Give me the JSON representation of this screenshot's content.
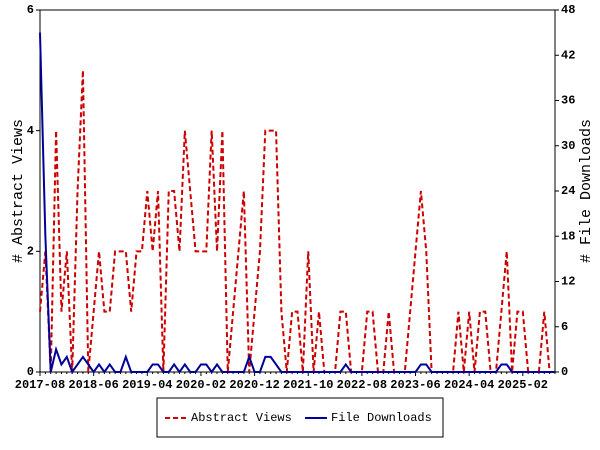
{
  "chart_data": {
    "type": "line",
    "y_label": "# Abstract Views",
    "y2_label": "# File Downloads",
    "categories": [
      "2017-08",
      null,
      null,
      null,
      null,
      null,
      null,
      null,
      null,
      null,
      "2018-06",
      null,
      null,
      null,
      null,
      null,
      null,
      null,
      null,
      null,
      "2019-04",
      null,
      null,
      null,
      null,
      null,
      null,
      null,
      null,
      null,
      "2020-02",
      null,
      null,
      null,
      null,
      null,
      null,
      null,
      null,
      null,
      "2020-12",
      null,
      null,
      null,
      null,
      null,
      null,
      null,
      null,
      null,
      "2021-10",
      null,
      null,
      null,
      null,
      null,
      null,
      null,
      null,
      null,
      "2022-08",
      null,
      null,
      null,
      null,
      null,
      null,
      null,
      null,
      null,
      "2023-06",
      null,
      null,
      null,
      null,
      null,
      null,
      null,
      null,
      null,
      "2024-04",
      null,
      null,
      null,
      null,
      null,
      null,
      null,
      null,
      null,
      "2025-02",
      null,
      null,
      null,
      null,
      null,
      null
    ],
    "series": [
      {
        "name": "Abstract Views",
        "color": "#cc0000",
        "dashed": true,
        "axis": "y",
        "values": [
          1,
          2,
          0,
          4,
          1,
          2,
          0,
          3,
          5,
          0,
          1,
          2,
          1,
          1,
          2,
          2,
          2,
          1,
          2,
          2,
          3,
          2,
          3,
          0,
          3,
          3,
          2,
          4,
          3,
          2,
          2,
          2,
          4,
          2,
          4,
          0,
          1,
          2,
          3,
          0,
          1,
          2,
          4,
          4,
          4,
          1,
          0,
          1,
          1,
          0,
          2,
          0,
          1,
          0,
          0,
          0,
          1,
          1,
          0,
          0,
          0,
          1,
          1,
          0,
          0,
          1,
          0,
          0,
          0,
          1,
          2,
          3,
          2,
          0,
          0,
          0,
          0,
          0,
          1,
          0,
          1,
          0,
          1,
          1,
          0,
          0,
          1,
          2,
          0,
          1,
          1,
          0,
          0,
          0,
          1,
          0,
          0
        ]
      },
      {
        "name": "File Downloads",
        "color": "#000099",
        "dashed": false,
        "axis": "y2",
        "values": [
          45,
          18,
          0,
          3,
          1,
          2,
          0,
          1,
          2,
          1,
          0,
          1,
          0,
          1,
          0,
          0,
          2,
          0,
          0,
          0,
          0,
          1,
          1,
          0,
          0,
          1,
          0,
          1,
          0,
          0,
          1,
          1,
          0,
          1,
          0,
          0,
          0,
          0,
          0,
          2,
          0,
          0,
          2,
          2,
          1,
          0,
          0,
          0,
          0,
          0,
          0,
          0,
          0,
          0,
          0,
          0,
          0,
          1,
          0,
          0,
          0,
          0,
          0,
          0,
          0,
          0,
          0,
          0,
          0,
          0,
          0,
          1,
          1,
          0,
          0,
          0,
          0,
          0,
          0,
          0,
          0,
          0,
          0,
          0,
          0,
          0,
          1,
          1,
          0,
          0,
          0,
          0,
          0,
          0,
          0,
          0,
          0
        ]
      }
    ],
    "ylim": [
      0,
      6
    ],
    "yticks": [
      0,
      2,
      4,
      6
    ],
    "y2lim": [
      0,
      48
    ],
    "y2ticks": [
      0,
      6,
      12,
      18,
      24,
      30,
      36,
      42,
      48
    ]
  }
}
